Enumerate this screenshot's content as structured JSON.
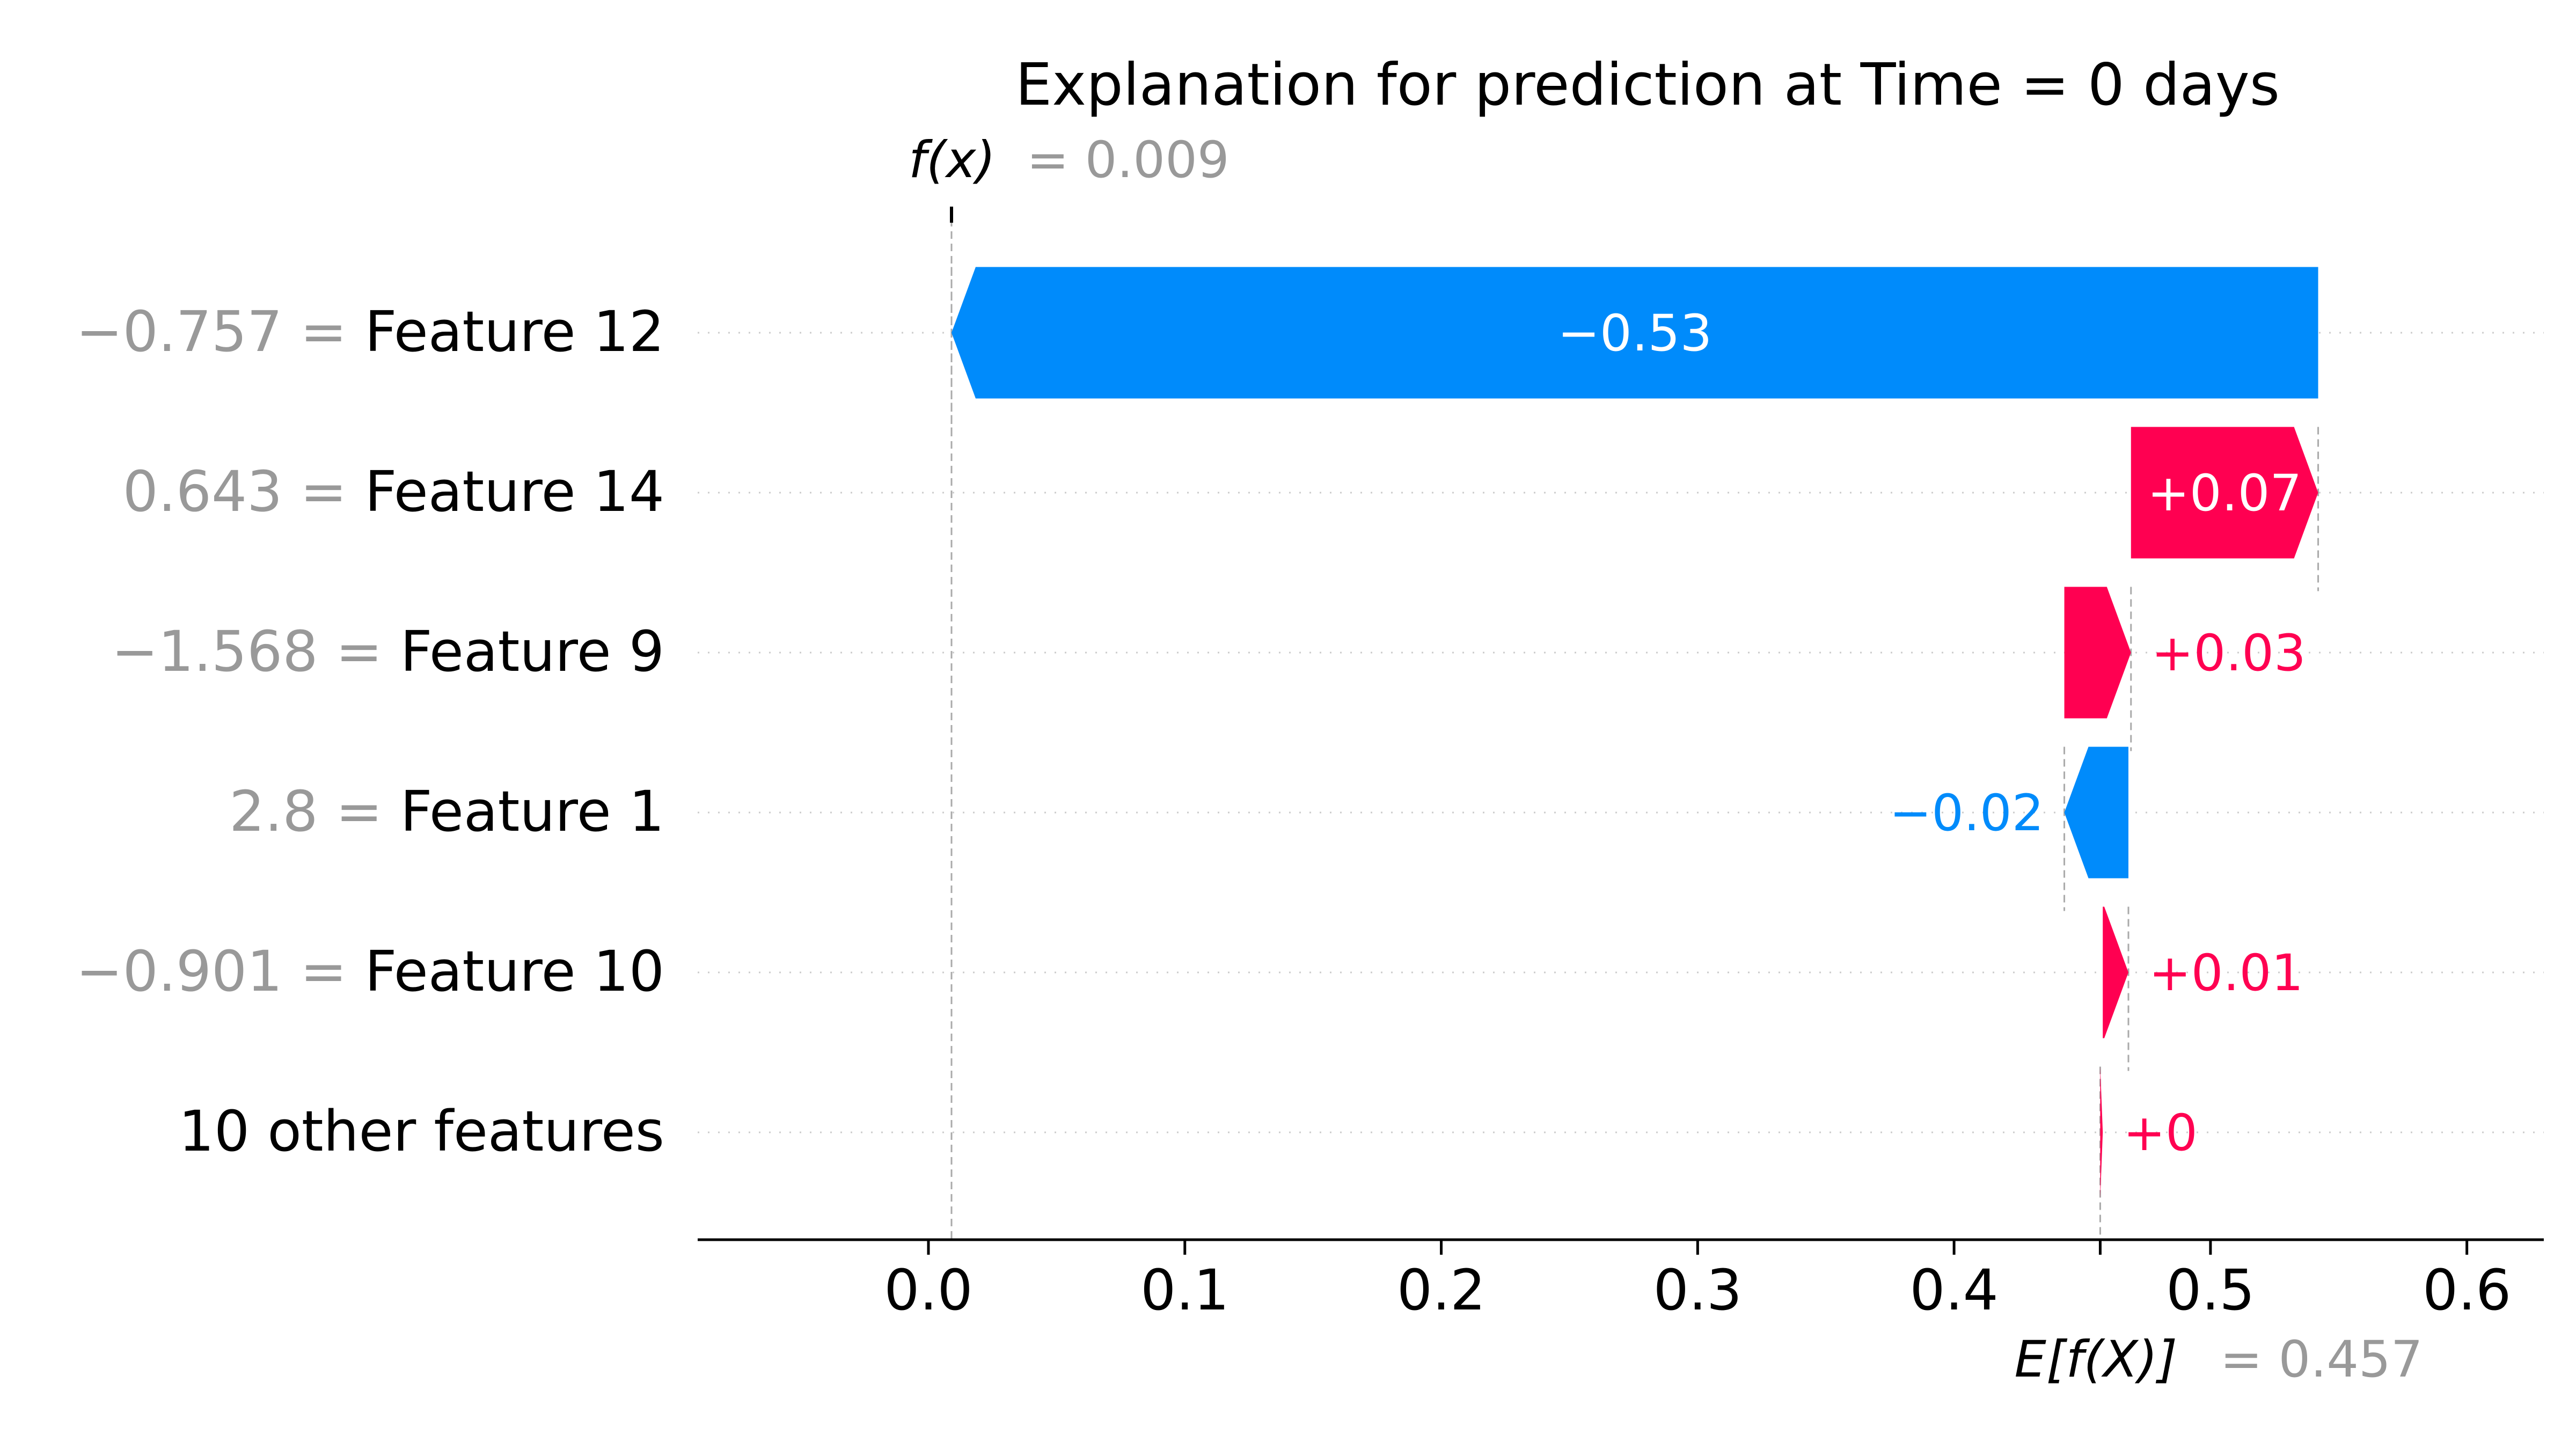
{
  "chart_data": {
    "type": "bar",
    "title": "Explanation for prediction at Time = 0 days",
    "fx": {
      "label": "f(x)",
      "value_text": "= 0.009",
      "value": 0.009
    },
    "efx": {
      "label": "E[f(X)]",
      "value_text": "= 0.457",
      "value": 0.457
    },
    "xlim": [
      -0.09,
      0.63
    ],
    "xticks": [
      0.0,
      0.1,
      0.2,
      0.3,
      0.4,
      0.5,
      0.6
    ],
    "xtick_labels": [
      "0.0",
      "0.1",
      "0.2",
      "0.3",
      "0.4",
      "0.5",
      "0.6"
    ],
    "features": [
      {
        "value_text": "−0.757 =",
        "name": "Feature 12",
        "start": 0.542,
        "end": 0.009,
        "label": "−0.53"
      },
      {
        "value_text": "0.643 =",
        "name": "Feature 14",
        "start": 0.469,
        "end": 0.542,
        "label": "+0.07"
      },
      {
        "value_text": "−1.568 =",
        "name": "Feature 9",
        "start": 0.443,
        "end": 0.469,
        "label": "+0.03"
      },
      {
        "value_text": "2.8 =",
        "name": "Feature 1",
        "start": 0.468,
        "end": 0.443,
        "label": "−0.02"
      },
      {
        "value_text": "−0.901 =",
        "name": "Feature 10",
        "start": 0.458,
        "end": 0.468,
        "label": "+0.01"
      },
      {
        "value_text": "",
        "name": "10 other features",
        "start": 0.457,
        "end": 0.458,
        "label": "+0"
      }
    ],
    "colors": {
      "positive": "#ff0051",
      "negative": "#008bfb",
      "muted": "#999999",
      "grid": "#cccccc"
    }
  }
}
